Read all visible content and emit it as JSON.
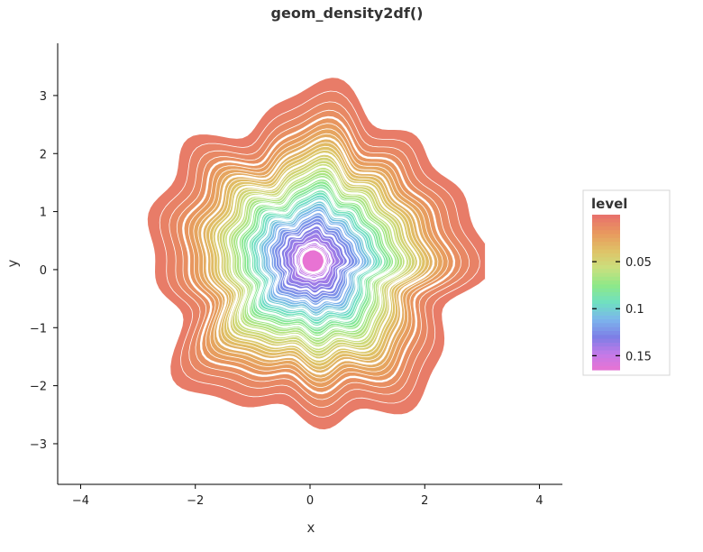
{
  "chart_data": {
    "type": "filled-density-contour",
    "title": "geom_density2df()",
    "xlabel": "x",
    "ylabel": "y",
    "xlim": [
      -4.4,
      4.4
    ],
    "ylim": [
      -3.7,
      3.9
    ],
    "x_ticks": [
      -4,
      -2,
      0,
      2,
      4
    ],
    "y_ticks": [
      -3,
      -2,
      -1,
      0,
      1,
      2,
      3
    ],
    "tick_label_text": {
      "x": [
        "−4",
        "−2",
        "0",
        "2",
        "4"
      ],
      "y": [
        "−3",
        "−2",
        "−1",
        "0",
        "1",
        "2",
        "3"
      ]
    },
    "density_region": {
      "x_range": [
        -3.05,
        3.05
      ],
      "y_range": [
        -3.35,
        3.65
      ]
    },
    "peak": {
      "x": 0.05,
      "y": 0.15,
      "max_level": 0.165
    },
    "grid": false,
    "legend": {
      "title": "level",
      "position": "right",
      "breaks": [
        0.05,
        0.1,
        0.15
      ],
      "break_labels": [
        "0.05",
        "0.1",
        "0.15"
      ],
      "range": [
        0,
        0.165
      ]
    },
    "palette_low_to_high": [
      "#e8736b",
      "#e89a5e",
      "#dfc267",
      "#c9e07e",
      "#8ee888",
      "#6fe0c2",
      "#7cb4ec",
      "#7d7ee6",
      "#c47ae8",
      "#ec72d0"
    ],
    "colors": {
      "axis": "#000000",
      "line_gap": "#ffffff"
    }
  }
}
